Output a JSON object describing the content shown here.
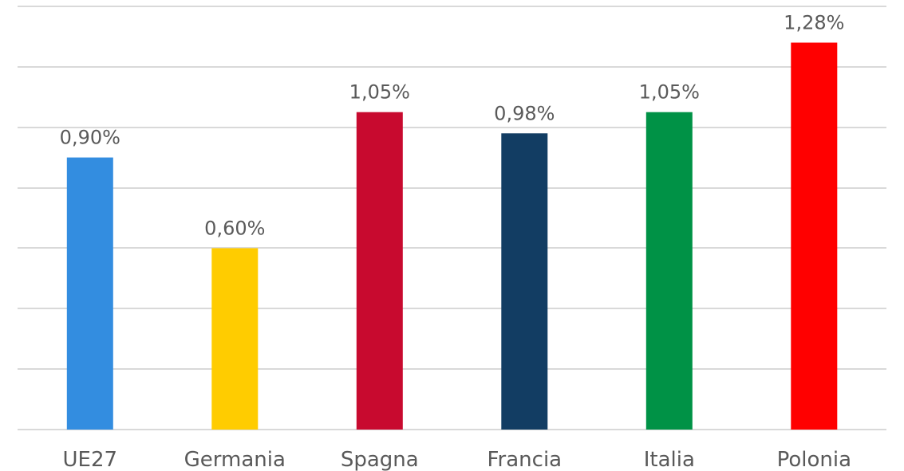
{
  "chart_data": {
    "type": "bar",
    "categories": [
      "UE27",
      "Germania",
      "Spagna",
      "Francia",
      "Italia",
      "Polonia"
    ],
    "values": [
      0.9,
      0.6,
      1.05,
      0.98,
      1.05,
      1.28
    ],
    "value_labels": [
      "0,90%",
      "0,60%",
      "1,05%",
      "0,98%",
      "1,05%",
      "1,28%"
    ],
    "colors": [
      "#338de0",
      "#ffcc00",
      "#c80a2f",
      "#123d63",
      "#009246",
      "#ff0000"
    ],
    "title": "",
    "xlabel": "",
    "ylabel": "",
    "ylim": [
      0,
      1.4
    ],
    "grid": true,
    "legend": "none"
  }
}
